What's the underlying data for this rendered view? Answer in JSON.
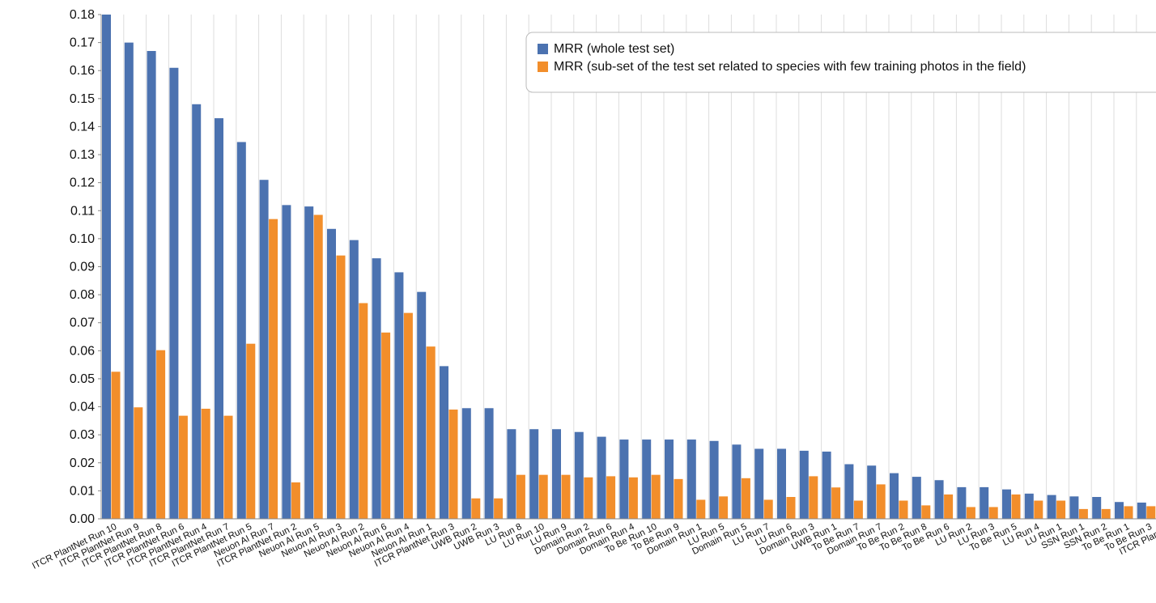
{
  "chart_data": {
    "type": "bar",
    "title": "",
    "xlabel": "",
    "ylabel": "",
    "ylim": [
      0,
      0.18
    ],
    "yticks": [
      "0.00",
      "0.01",
      "0.02",
      "0.03",
      "0.04",
      "0.05",
      "0.06",
      "0.07",
      "0.08",
      "0.09",
      "0.10",
      "0.11",
      "0.12",
      "0.13",
      "0.14",
      "0.15",
      "0.16",
      "0.17",
      "0.18"
    ],
    "grid": "vertical",
    "legend_position": "top-right",
    "categories": [
      "ITCR PlantNet Run 10",
      "ITCR PlantNet Run 9",
      "ITCR PlantNet Run 8",
      "ITCR PlantNet Run 6",
      "ITCR PlantNet Run 4",
      "ITCR PlantNet Run 7",
      "ITCR PlantNet Run 5",
      "Neuon AI Run 7",
      "ITCR PlantNet Run 2",
      "Neuon AI Run 5",
      "Neuon AI Run 3",
      "Neuon AI Run 2",
      "Neuon AI Run 6",
      "Neuon AI Run 4",
      "Neuon AI Run 1",
      "ITCR PlantNet Run 3",
      "UWB Run 2",
      "UWB Run 3",
      "LU Run 8",
      "LU Run 10",
      "LU Run 9",
      "Domain Run 2",
      "Domain Run 6",
      "Domain Run 4",
      "To Be Run 10",
      "To Be Run 9",
      "Domain Run 1",
      "LU Run 5",
      "Domain Run 5",
      "LU Run 7",
      "LU Run 6",
      "Domain Run 3",
      "UWB Run 1",
      "To Be Run 7",
      "Domain Run 7",
      "To Be Run 2",
      "To Be Run 8",
      "To Be Run 6",
      "LU Run 2",
      "LU Run 3",
      "To Be Run 5",
      "LU Run 4",
      "LU Run 1",
      "SSN Run 1",
      "SSN Run 2",
      "To Be Run 1",
      "To Be Run 3",
      "ITCR PlantNet"
    ],
    "series": [
      {
        "name": "MRR (whole test set)",
        "color": "#4b72b0",
        "values": [
          0.18,
          0.17,
          0.167,
          0.161,
          0.148,
          0.143,
          0.1345,
          0.121,
          0.112,
          0.1115,
          0.1035,
          0.0995,
          0.093,
          0.088,
          0.081,
          0.0545,
          0.0395,
          0.0395,
          0.032,
          0.032,
          0.032,
          0.031,
          0.0293,
          0.0283,
          0.0283,
          0.0283,
          0.0283,
          0.0278,
          0.0265,
          0.025,
          0.025,
          0.0243,
          0.024,
          0.0195,
          0.019,
          0.0163,
          0.015,
          0.0138,
          0.0113,
          0.0113,
          0.0105,
          0.009,
          0.0085,
          0.008,
          0.0078,
          0.006,
          0.0058,
          0.0058
        ]
      },
      {
        "name": "MRR (sub-set of the test set related to species with few training photos in the field)",
        "color": "#f28e2b",
        "values": [
          0.0525,
          0.0398,
          0.0602,
          0.0368,
          0.0393,
          0.0368,
          0.0625,
          0.107,
          0.013,
          0.1085,
          0.094,
          0.077,
          0.0665,
          0.0735,
          0.0615,
          0.039,
          0.0073,
          0.0073,
          0.0157,
          0.0157,
          0.0157,
          0.0148,
          0.0152,
          0.0148,
          0.0157,
          0.0142,
          0.0068,
          0.008,
          0.0145,
          0.0068,
          0.0078,
          0.0152,
          0.0112,
          0.0065,
          0.0123,
          0.0065,
          0.0048,
          0.0087,
          0.0042,
          0.0042,
          0.0087,
          0.0065,
          0.0065,
          0.0035,
          0.0035,
          0.0045,
          0.0045,
          0.0045
        ]
      }
    ]
  }
}
